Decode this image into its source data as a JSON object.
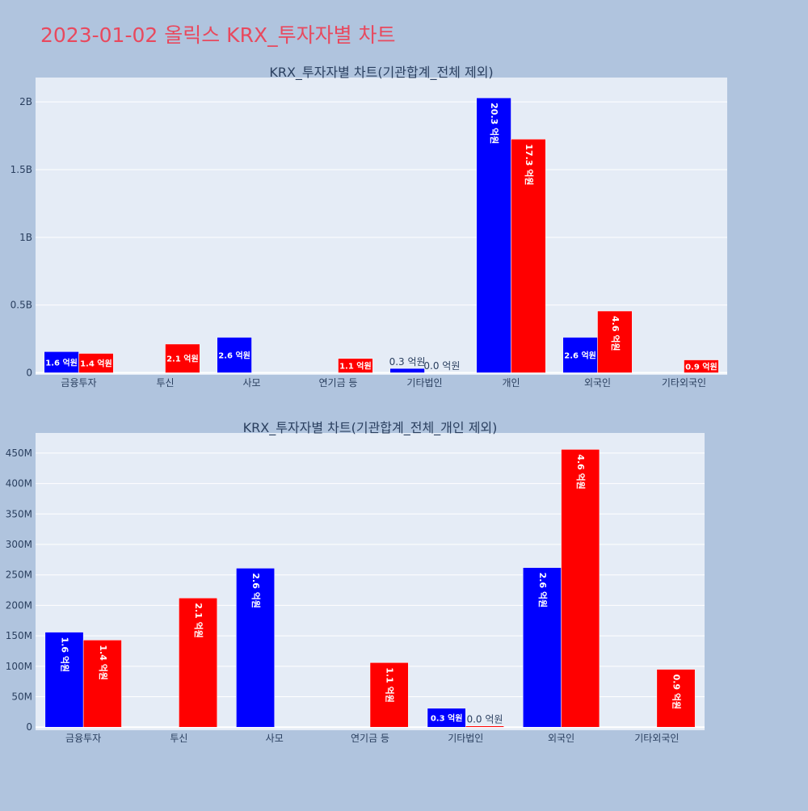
{
  "page": {
    "title": "2023-01-02 올릭스 KRX_투자자별 차트"
  },
  "colors": {
    "buy": "#0000ff",
    "sell": "#ff0000",
    "plot_bg": "#e5ecf6",
    "page_bg": "#b0c4de",
    "grid": "#ffffff",
    "text": "#2a3f5f"
  },
  "chart_data": [
    {
      "type": "bar",
      "title": "KRX_투자자별 차트(기관합계_전체 제외)",
      "categories": [
        "금융투자",
        "투신",
        "사모",
        "연기금 등",
        "기타법인",
        "개인",
        "외국인",
        "기타외국인"
      ],
      "series": [
        {
          "values": [
            156000000,
            0,
            262000000,
            0,
            32000000,
            2030000000,
            262000000,
            0
          ],
          "labels": [
            "1.6 억원",
            "",
            "2.6 억원",
            "",
            "0.3 억원",
            "20.3 억원",
            "2.6 억원",
            ""
          ]
        },
        {
          "values": [
            143000000,
            212000000,
            0,
            106000000,
            2000000,
            1725000000,
            456000000,
            95000000
          ],
          "labels": [
            "1.4 억원",
            "2.1 억원",
            "",
            "1.1 억원",
            "0.0 억원",
            "17.3 억원",
            "4.6 억원",
            "0.9 억원"
          ]
        }
      ],
      "ylim": [
        -15000000,
        2180000000
      ],
      "yticks": [
        0,
        500000000,
        1000000000,
        1500000000,
        2000000000
      ],
      "ytick_labels": [
        "0",
        "0.5B",
        "1B",
        "1.5B",
        "2B"
      ],
      "grid": true
    },
    {
      "type": "bar",
      "title": "KRX_투자자별 차트(기관합계_전체_개인 제외)",
      "categories": [
        "금융투자",
        "투신",
        "사모",
        "연기금 등",
        "기타법인",
        "외국인",
        "기타외국인"
      ],
      "series": [
        {
          "values": [
            156000000,
            0,
            261000000,
            0,
            31000000,
            262000000,
            0
          ],
          "labels": [
            "1.6 억원",
            "",
            "2.6 억원",
            "",
            "0.3 억원",
            "2.6 억원",
            ""
          ]
        },
        {
          "values": [
            143000000,
            212000000,
            0,
            106000000,
            2000000,
            456000000,
            95000000
          ],
          "labels": [
            "1.4 억원",
            "2.1 억원",
            "",
            "1.1 억원",
            "0.0 억원",
            "4.6 억원",
            "0.9 억원"
          ]
        }
      ],
      "ylim": [
        -5000000,
        483000000
      ],
      "yticks": [
        0,
        50000000,
        100000000,
        150000000,
        200000000,
        250000000,
        300000000,
        350000000,
        400000000,
        450000000
      ],
      "ytick_labels": [
        "0",
        "50M",
        "100M",
        "150M",
        "200M",
        "250M",
        "300M",
        "350M",
        "400M",
        "450M"
      ],
      "grid": true
    }
  ]
}
